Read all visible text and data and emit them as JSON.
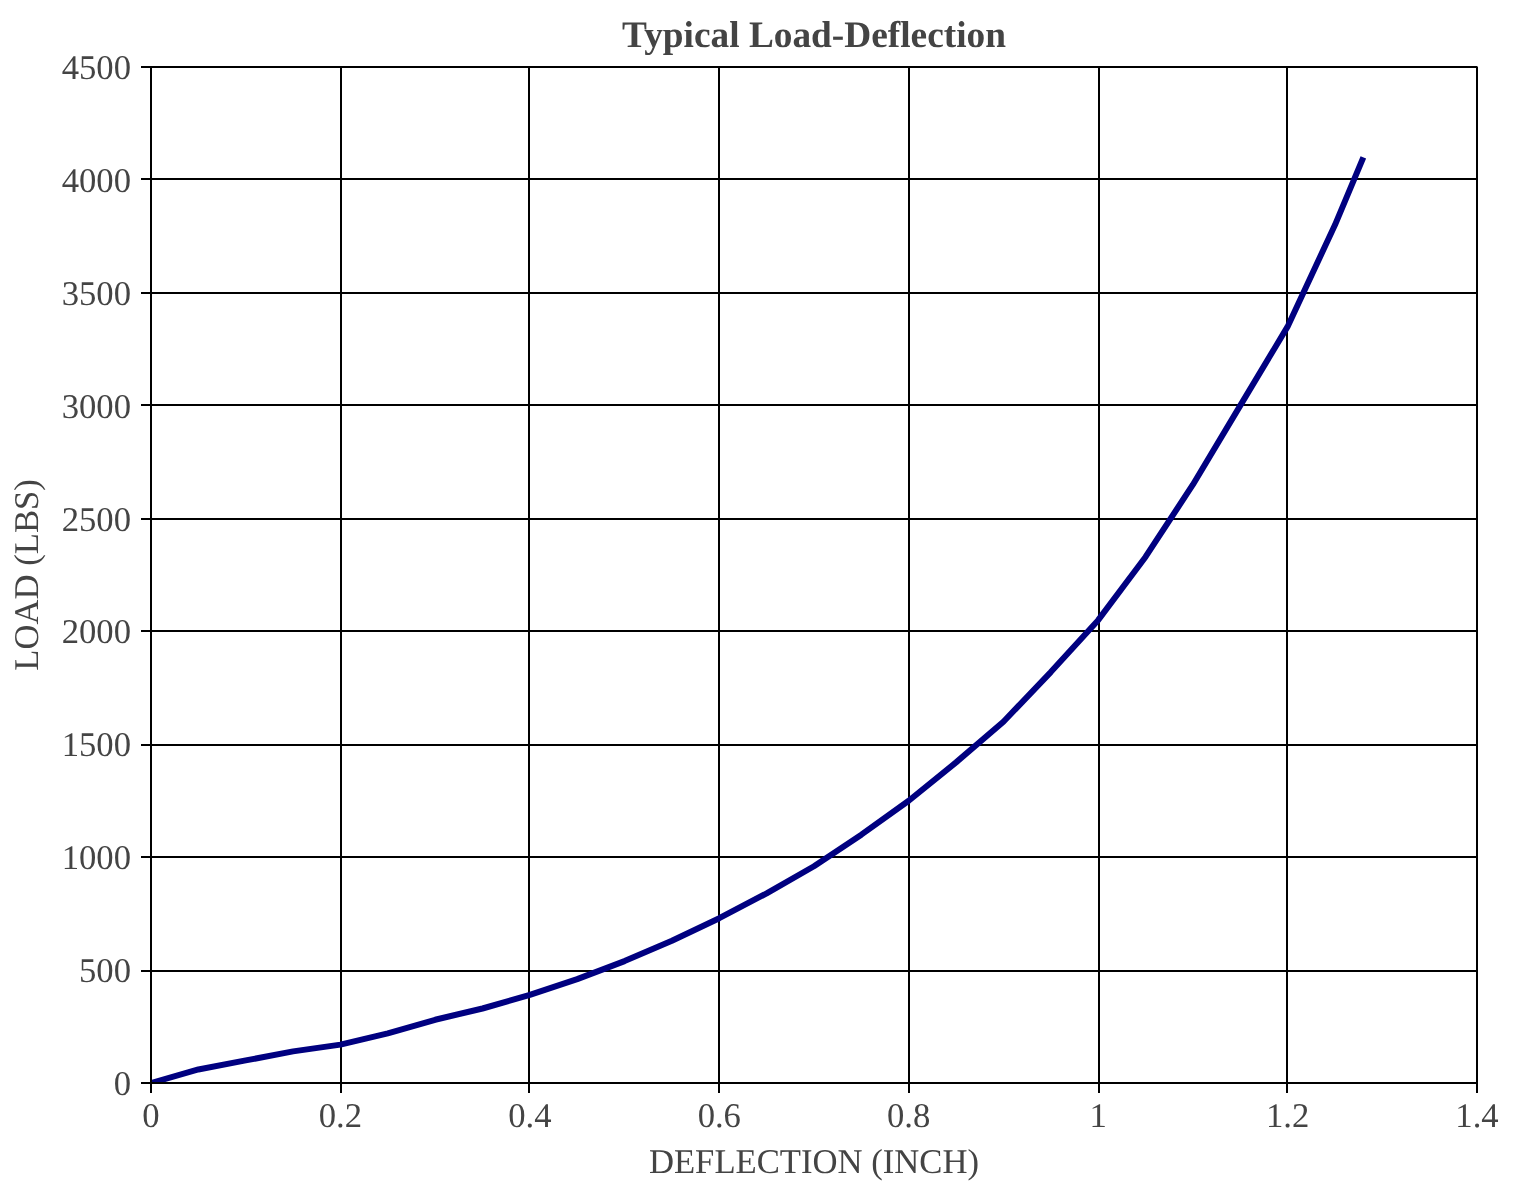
{
  "chart_data": {
    "type": "line",
    "title": "Typical Load-Deflection",
    "xlabel": "DEFLECTION (INCH)",
    "ylabel": "LOAD (LBS)",
    "x": [
      0,
      0.05,
      0.1,
      0.15,
      0.2,
      0.25,
      0.3,
      0.35,
      0.4,
      0.45,
      0.5,
      0.55,
      0.6,
      0.65,
      0.7,
      0.75,
      0.8,
      0.85,
      0.9,
      0.95,
      1.0,
      1.05,
      1.1,
      1.15,
      1.2,
      1.25,
      1.28
    ],
    "series": [
      {
        "color": "#000080",
        "values": [
          0,
          60,
          100,
          140,
          170,
          220,
          280,
          330,
          390,
          460,
          540,
          630,
          730,
          840,
          960,
          1100,
          1250,
          1420,
          1600,
          1820,
          2050,
          2330,
          2650,
          3000,
          3350,
          3800,
          4100
        ]
      }
    ],
    "xlim": [
      0,
      1.4
    ],
    "ylim": [
      0,
      4500
    ],
    "xticks": [
      0,
      0.2,
      0.4,
      0.6,
      0.8,
      1,
      1.2,
      1.4
    ],
    "yticks": [
      0,
      500,
      1000,
      1500,
      2000,
      2500,
      3000,
      3500,
      4000,
      4500
    ],
    "grid": true,
    "marker": "none",
    "line_style": "solid"
  }
}
